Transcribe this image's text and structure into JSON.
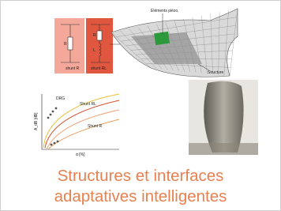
{
  "diagram": {
    "piezo_label": "Éléments piézo.",
    "structure_label": "Structure",
    "shunt_r": "shunt R",
    "shunt_rl": "shunt RL",
    "r_left": "R",
    "r_right": "R",
    "l_right": "L"
  },
  "graph": {
    "curve_labels": [
      "DRG",
      "Shunt RL",
      "Shunt R"
    ],
    "y_label": "A_dB [dB]",
    "x_label": "α [%]"
  },
  "title": {
    "line1": "Structures et interfaces",
    "line2": "adaptatives intelligentes"
  }
}
